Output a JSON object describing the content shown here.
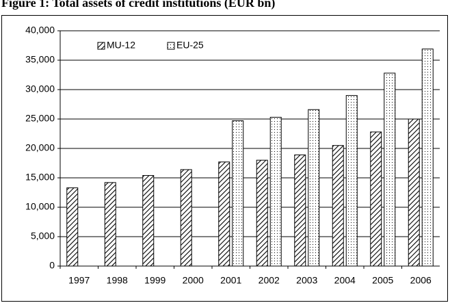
{
  "chart_data": {
    "type": "bar",
    "title": "Figure 1: Total assets of credit institutions (EUR bn)",
    "categories": [
      "1997",
      "1998",
      "1999",
      "2000",
      "2001",
      "2002",
      "2003",
      "2004",
      "2005",
      "2006"
    ],
    "series": [
      {
        "name": "MU-12",
        "color": "#000000",
        "pattern": "hatch",
        "values": [
          13300,
          14200,
          15400,
          16400,
          17700,
          18000,
          18900,
          20500,
          22800,
          25000
        ]
      },
      {
        "name": "EU-25",
        "color": "#000000",
        "pattern": "dots",
        "values": [
          null,
          null,
          null,
          null,
          24700,
          25300,
          26600,
          29000,
          32800,
          36900
        ]
      }
    ],
    "ylim": [
      0,
      40000
    ],
    "yticks": [
      0,
      {
        "value": 5000,
        "label": "5,000"
      },
      {
        "value": 10000,
        "label": "10,000"
      },
      {
        "value": 15000,
        "label": "15,000"
      },
      {
        "value": 20000,
        "label": "20,000"
      },
      {
        "value": 25000,
        "label": "25,000"
      },
      {
        "value": 30000,
        "label": "30,000"
      },
      {
        "value": 35000,
        "label": "35,000"
      },
      {
        "value": 40000,
        "label": "40,000"
      }
    ],
    "grid": true,
    "legend": "upper left"
  }
}
